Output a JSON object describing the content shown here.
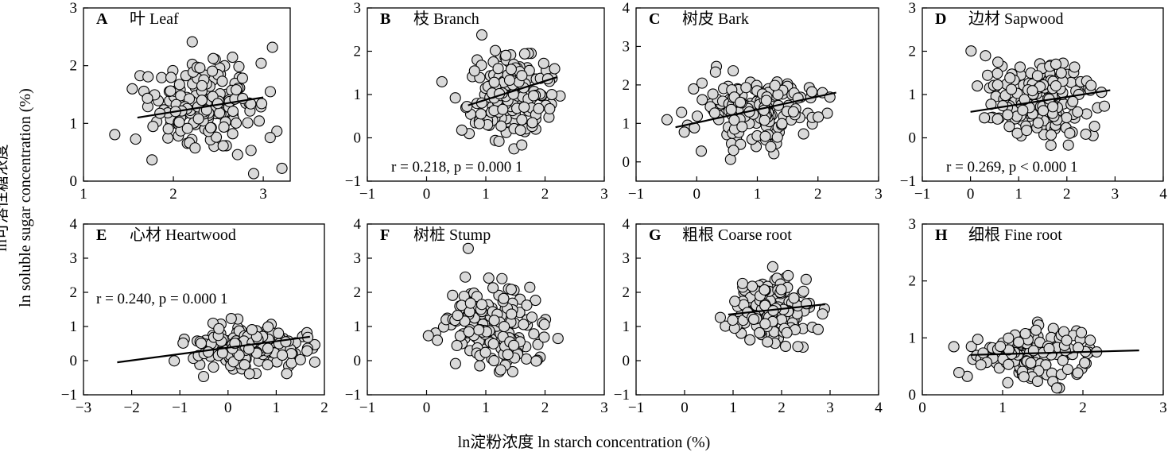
{
  "figure": {
    "ylabel_cn": "ln可溶性糖浓度",
    "ylabel_en": "ln soluble sugar concentration (%)",
    "xlabel": "ln淀粉浓度  ln starch concentration (%)"
  },
  "chart_data": [
    {
      "type": "scatter",
      "letter": "A",
      "title": "叶 Leaf",
      "xlim": [
        1,
        3.3
      ],
      "ylim": [
        0,
        3
      ],
      "xticks": [
        1,
        2,
        3
      ],
      "yticks": [
        0,
        1,
        2,
        3
      ],
      "annotation": "",
      "fit": [
        [
          1.6,
          1.1
        ],
        [
          3.0,
          1.45
        ]
      ],
      "seed": 1,
      "n": 180,
      "xmean": 2.3,
      "xsd": 0.32,
      "ymean": 1.3,
      "ysd": 0.42
    },
    {
      "type": "scatter",
      "letter": "B",
      "title": "枝 Branch",
      "xlim": [
        -1,
        3
      ],
      "ylim": [
        -1,
        3
      ],
      "xticks": [
        -1,
        0,
        1,
        2,
        3
      ],
      "yticks": [
        -1,
        0,
        1,
        2,
        3
      ],
      "annotation": "r = 0.218, p = 0.000 1",
      "fit": [
        [
          0.7,
          0.75
        ],
        [
          2.2,
          1.4
        ]
      ],
      "seed": 2,
      "n": 180,
      "xmean": 1.45,
      "xsd": 0.33,
      "ymean": 1.0,
      "ysd": 0.5
    },
    {
      "type": "scatter",
      "letter": "C",
      "title": "树皮 Bark",
      "xlim": [
        -1,
        3
      ],
      "ylim": [
        -0.5,
        4
      ],
      "xticks": [
        -1,
        0,
        1,
        2,
        3
      ],
      "yticks": [
        0,
        1,
        2,
        3,
        4
      ],
      "annotation": "",
      "fit": [
        [
          -0.35,
          0.9
        ],
        [
          2.3,
          1.8
        ]
      ],
      "seed": 3,
      "n": 180,
      "xmean": 1.0,
      "xsd": 0.5,
      "ymean": 1.4,
      "ysd": 0.5
    },
    {
      "type": "scatter",
      "letter": "D",
      "title": "边材 Sapwood",
      "xlim": [
        -1,
        4
      ],
      "ylim": [
        -1,
        3
      ],
      "xticks": [
        -1,
        0,
        1,
        2,
        3,
        4
      ],
      "yticks": [
        -1,
        0,
        1,
        2,
        3
      ],
      "annotation": "r = 0.269, p < 0.000 1",
      "fit": [
        [
          0.0,
          0.6
        ],
        [
          2.9,
          1.1
        ]
      ],
      "seed": 4,
      "n": 180,
      "xmean": 1.4,
      "xsd": 0.55,
      "ymean": 0.9,
      "ysd": 0.45
    },
    {
      "type": "scatter",
      "letter": "E",
      "title": "心材 Heartwood",
      "xlim": [
        -3,
        2
      ],
      "ylim": [
        -1,
        4
      ],
      "xticks": [
        -3,
        -2,
        -1,
        0,
        1,
        2
      ],
      "yticks": [
        -1,
        0,
        1,
        2,
        3,
        4
      ],
      "annotation": "r = 0.240, p = 0.000 1",
      "fit": [
        [
          -2.3,
          -0.05
        ],
        [
          1.7,
          0.7
        ]
      ],
      "seed": 5,
      "n": 180,
      "xmean": 0.35,
      "xsd": 0.6,
      "ymean": 0.35,
      "ysd": 0.35
    },
    {
      "type": "scatter",
      "letter": "F",
      "title": "树桩 Stump",
      "xlim": [
        -1,
        3
      ],
      "ylim": [
        -1,
        4
      ],
      "xticks": [
        -1,
        0,
        1,
        2,
        3
      ],
      "yticks": [
        -1,
        0,
        1,
        2,
        3,
        4
      ],
      "annotation": "",
      "fit": [],
      "seed": 6,
      "n": 180,
      "xmean": 1.1,
      "xsd": 0.42,
      "ymean": 1.0,
      "ysd": 0.6
    },
    {
      "type": "scatter",
      "letter": "G",
      "title": "粗根 Coarse root",
      "xlim": [
        -1,
        4
      ],
      "ylim": [
        -1,
        4
      ],
      "xticks": [
        -1,
        0,
        1,
        2,
        3,
        4
      ],
      "yticks": [
        -1,
        0,
        1,
        2,
        3,
        4
      ],
      "annotation": "",
      "fit": [
        [
          0.9,
          1.35
        ],
        [
          2.9,
          1.65
        ]
      ],
      "seed": 7,
      "n": 150,
      "xmean": 1.85,
      "xsd": 0.45,
      "ymean": 1.45,
      "ysd": 0.5
    },
    {
      "type": "scatter",
      "letter": "H",
      "title": "细根 Fine root",
      "xlim": [
        0,
        3
      ],
      "ylim": [
        0,
        3
      ],
      "xticks": [
        0,
        1,
        2,
        3
      ],
      "yticks": [
        0,
        1,
        2,
        3
      ],
      "annotation": "",
      "fit": [
        [
          0.6,
          0.7
        ],
        [
          2.7,
          0.78
        ]
      ],
      "seed": 8,
      "n": 180,
      "xmean": 1.35,
      "xsd": 0.35,
      "ymean": 0.72,
      "ysd": 0.22
    }
  ]
}
